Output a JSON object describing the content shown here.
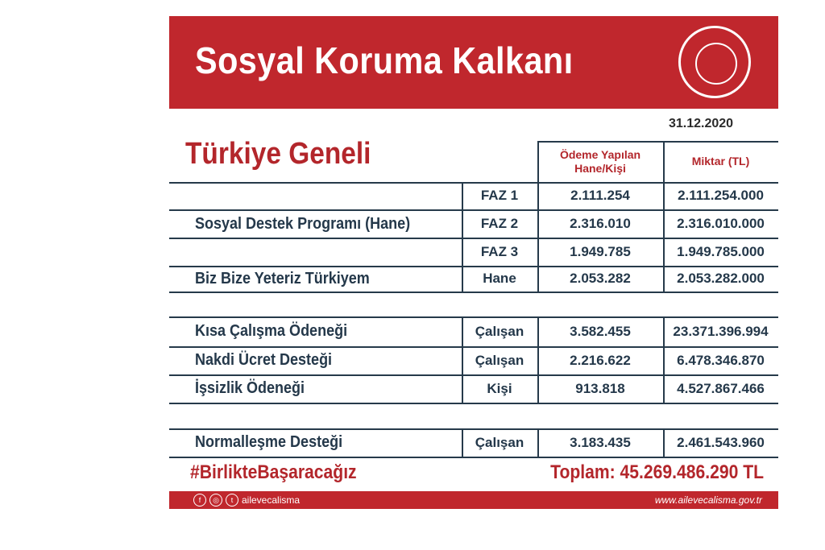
{
  "header": {
    "title": "Sosyal Koruma Kalkanı",
    "logo": "ministry-seal"
  },
  "date": "31.12.2020",
  "subtitle": "Türkiye Geneli",
  "columns": {
    "count": "Ödeme Yapılan Hane/Kişi",
    "amount": "Miktar (TL)"
  },
  "groups": [
    {
      "label": "Sosyal Destek Programı (Hane)"
    },
    {
      "label": "Biz Bize Yeteriz Türkiyem"
    },
    {
      "label": "Kısa Çalışma Ödeneği"
    },
    {
      "label": "Nakdi Ücret Desteği"
    },
    {
      "label": "İşsizlik Ödeneği"
    },
    {
      "label": "Normalleşme Desteği"
    }
  ],
  "rows": [
    {
      "unit": "FAZ 1",
      "count": "2.111.254",
      "amount": "2.111.254.000"
    },
    {
      "unit": "FAZ 2",
      "count": "2.316.010",
      "amount": "2.316.010.000"
    },
    {
      "unit": "FAZ 3",
      "count": "1.949.785",
      "amount": "1.949.785.000"
    },
    {
      "unit": "Hane",
      "count": "2.053.282",
      "amount": "2.053.282.000"
    },
    {
      "unit": "Çalışan",
      "count": "3.582.455",
      "amount": "23.371.396.994"
    },
    {
      "unit": "Çalışan",
      "count": "2.216.622",
      "amount": "6.478.346.870"
    },
    {
      "unit": "Kişi",
      "count": "913.818",
      "amount": "4.527.867.466"
    },
    {
      "unit": "Çalışan",
      "count": "3.183.435",
      "amount": "2.461.543.960"
    }
  ],
  "hashtag": "#BirlikteBaşaracağız",
  "total": "Toplam: 45.269.486.290 TL",
  "footer": {
    "social_handle": "ailevecalisma",
    "website": "www.ailevecalisma.gov.tr",
    "icons": [
      "facebook-icon",
      "instagram-icon",
      "twitter-icon"
    ]
  },
  "colors": {
    "brand_red": "#c0272d",
    "text_navy": "#24384a"
  }
}
